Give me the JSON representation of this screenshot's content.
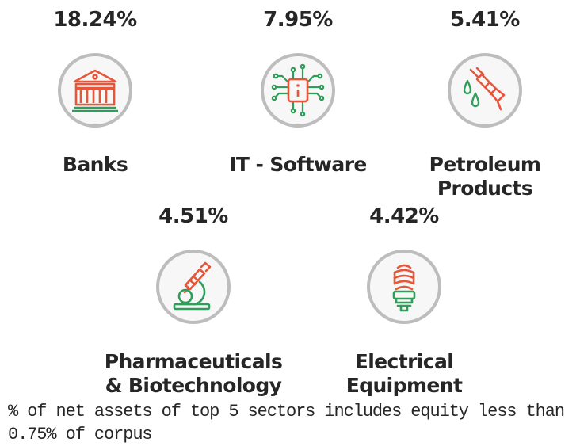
{
  "colors": {
    "green": "#2e9e5b",
    "orange": "#e8563a",
    "circle_stroke": "#bdbdbd",
    "circle_fill": "#f7f7f7",
    "text": "#262626"
  },
  "chart_data": {
    "type": "icon-infographic",
    "unit": "% of net assets",
    "sectors": [
      {
        "name_lines": [
          "Banks"
        ],
        "value_label": "18.24%",
        "value": 18.24,
        "icon": "bank-building-icon"
      },
      {
        "name_lines": [
          "IT - Software"
        ],
        "value_label": "7.95%",
        "value": 7.95,
        "icon": "microchip-circuit-icon"
      },
      {
        "name_lines": [
          "Petroleum",
          "Products"
        ],
        "value_label": "5.41%",
        "value": 5.41,
        "icon": "fuel-nozzle-icon"
      },
      {
        "name_lines": [
          "Pharmaceuticals",
          "& Biotechnology"
        ],
        "value_label": "4.51%",
        "value": 4.51,
        "icon": "microscope-icon"
      },
      {
        "name_lines": [
          "Electrical",
          "Equipment"
        ],
        "value_label": "4.42%",
        "value": 4.42,
        "icon": "cfl-bulb-icon"
      }
    ]
  },
  "footnote": {
    "line1": "% of net assets of top 5 sectors includes equity less than",
    "line2": "0.75% of corpus"
  }
}
